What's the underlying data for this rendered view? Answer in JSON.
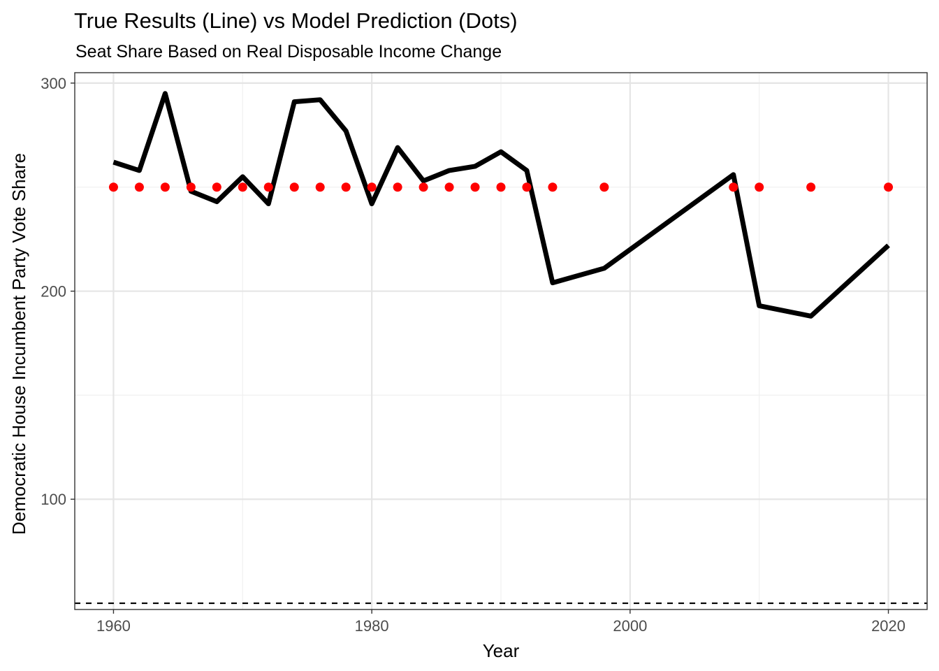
{
  "chart_data": {
    "type": "line",
    "title": "True Results (Line) vs Model Prediction (Dots)",
    "subtitle": "Seat Share Based on Real Disposable Income Change",
    "xlabel": "Year",
    "ylabel": "Democratic House Incumbent Party Vote Share",
    "xlim": [
      1957,
      2023
    ],
    "ylim": [
      47,
      305
    ],
    "x_ticks": [
      1960,
      1980,
      2000,
      2020
    ],
    "y_ticks": [
      100,
      200,
      300
    ],
    "grid": true,
    "legend": "none",
    "series": [
      {
        "type": "line",
        "color": "#000000",
        "points": [
          {
            "x": 1960,
            "y": 262
          },
          {
            "x": 1962,
            "y": 258
          },
          {
            "x": 1964,
            "y": 295
          },
          {
            "x": 1966,
            "y": 248
          },
          {
            "x": 1968,
            "y": 243
          },
          {
            "x": 1970,
            "y": 255
          },
          {
            "x": 1972,
            "y": 242
          },
          {
            "x": 1974,
            "y": 291
          },
          {
            "x": 1976,
            "y": 292
          },
          {
            "x": 1978,
            "y": 277
          },
          {
            "x": 1980,
            "y": 242
          },
          {
            "x": 1982,
            "y": 269
          },
          {
            "x": 1984,
            "y": 253
          },
          {
            "x": 1986,
            "y": 258
          },
          {
            "x": 1988,
            "y": 260
          },
          {
            "x": 1990,
            "y": 267
          },
          {
            "x": 1992,
            "y": 258
          },
          {
            "x": 1994,
            "y": 204
          },
          {
            "x": 1998,
            "y": 211
          },
          {
            "x": 2008,
            "y": 256
          },
          {
            "x": 2010,
            "y": 193
          },
          {
            "x": 2014,
            "y": 188
          },
          {
            "x": 2020,
            "y": 222
          }
        ]
      },
      {
        "type": "scatter",
        "color": "#ff0000",
        "points": [
          {
            "x": 1960,
            "y": 250
          },
          {
            "x": 1962,
            "y": 250
          },
          {
            "x": 1964,
            "y": 250
          },
          {
            "x": 1966,
            "y": 250
          },
          {
            "x": 1968,
            "y": 250
          },
          {
            "x": 1970,
            "y": 250
          },
          {
            "x": 1972,
            "y": 250
          },
          {
            "x": 1974,
            "y": 250
          },
          {
            "x": 1976,
            "y": 250
          },
          {
            "x": 1978,
            "y": 250
          },
          {
            "x": 1980,
            "y": 250
          },
          {
            "x": 1982,
            "y": 250
          },
          {
            "x": 1984,
            "y": 250
          },
          {
            "x": 1986,
            "y": 250
          },
          {
            "x": 1988,
            "y": 250
          },
          {
            "x": 1990,
            "y": 250
          },
          {
            "x": 1992,
            "y": 250
          },
          {
            "x": 1994,
            "y": 250
          },
          {
            "x": 1998,
            "y": 250
          },
          {
            "x": 2008,
            "y": 250
          },
          {
            "x": 2010,
            "y": 250
          },
          {
            "x": 2014,
            "y": 250
          },
          {
            "x": 2020,
            "y": 250
          }
        ]
      }
    ],
    "reference_line": {
      "y": 50,
      "style": "dashed",
      "color": "#000000"
    }
  }
}
